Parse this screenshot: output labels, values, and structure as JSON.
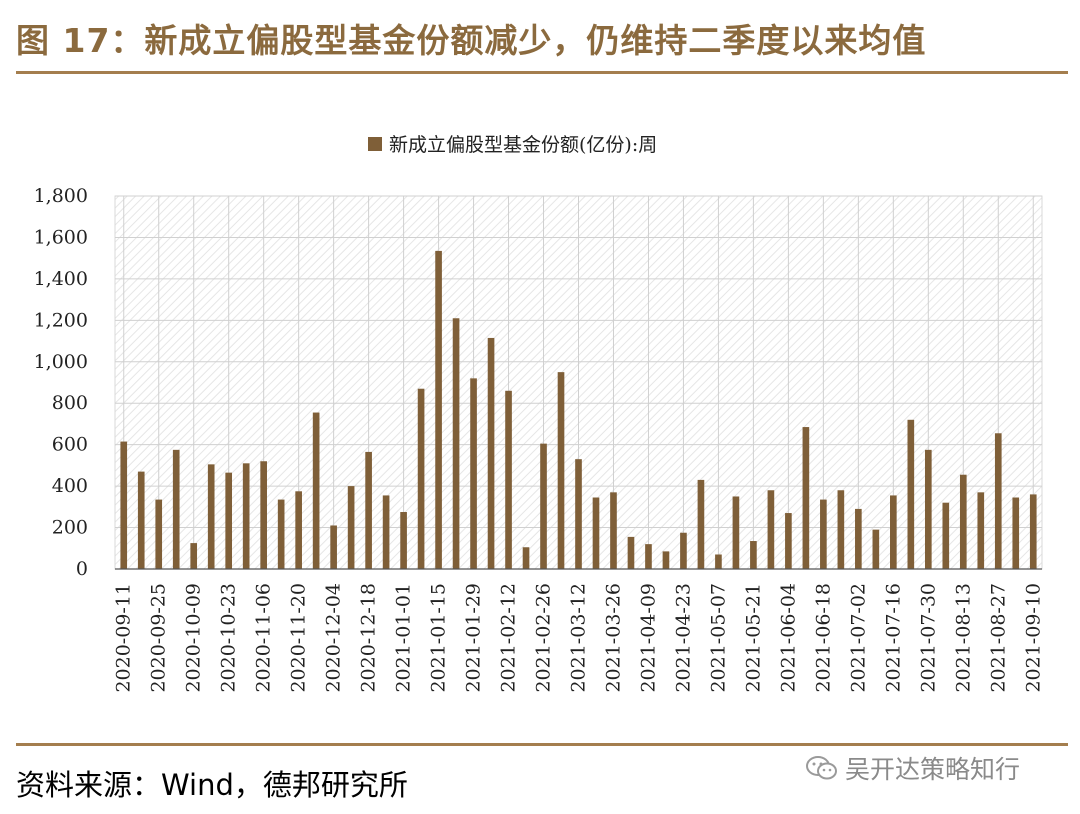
{
  "header": {
    "title": "图 17：新成立偏股型基金份额减少，仍维持二季度以来均值"
  },
  "footer": {
    "source": "资料来源：Wind，德邦研究所",
    "watermark": "吴开达策略知行"
  },
  "colors": {
    "bar": "#7f5f38",
    "rule": "#a47e4e",
    "title": "#8b6a3e"
  },
  "chart_data": {
    "type": "bar",
    "title": "",
    "legend_position": "top",
    "ylim": [
      0,
      1800
    ],
    "ytick_step": 200,
    "grid": true,
    "series": [
      {
        "name": "新成立偏股型基金份额(亿份):周",
        "x": [
          "2020-09-11",
          "2020-09-18",
          "2020-09-25",
          "2020-10-02",
          "2020-10-09",
          "2020-10-16",
          "2020-10-23",
          "2020-10-30",
          "2020-11-06",
          "2020-11-13",
          "2020-11-20",
          "2020-11-27",
          "2020-12-04",
          "2020-12-11",
          "2020-12-18",
          "2020-12-25",
          "2021-01-01",
          "2021-01-08",
          "2021-01-15",
          "2021-01-22",
          "2021-01-29",
          "2021-02-05",
          "2021-02-12",
          "2021-02-19",
          "2021-02-26",
          "2021-03-05",
          "2021-03-12",
          "2021-03-19",
          "2021-03-26",
          "2021-04-02",
          "2021-04-09",
          "2021-04-16",
          "2021-04-23",
          "2021-04-30",
          "2021-05-07",
          "2021-05-14",
          "2021-05-21",
          "2021-05-28",
          "2021-06-04",
          "2021-06-11",
          "2021-06-18",
          "2021-06-25",
          "2021-07-02",
          "2021-07-09",
          "2021-07-16",
          "2021-07-23",
          "2021-07-30",
          "2021-08-06",
          "2021-08-13",
          "2021-08-20",
          "2021-08-27",
          "2021-09-03",
          "2021-09-10"
        ],
        "values": [
          615,
          470,
          335,
          575,
          125,
          505,
          465,
          510,
          520,
          335,
          375,
          755,
          210,
          400,
          565,
          355,
          275,
          870,
          1535,
          1210,
          920,
          1115,
          860,
          105,
          605,
          950,
          530,
          345,
          370,
          155,
          120,
          85,
          175,
          430,
          70,
          350,
          135,
          380,
          270,
          685,
          335,
          380,
          290,
          190,
          355,
          720,
          575,
          320,
          455,
          370,
          655,
          345,
          360
        ]
      }
    ],
    "xtick_labels": [
      "2020-09-11",
      "2020-09-25",
      "2020-10-09",
      "2020-10-23",
      "2020-11-06",
      "2020-11-20",
      "2020-12-04",
      "2020-12-18",
      "2021-01-01",
      "2021-01-15",
      "2021-01-29",
      "2021-02-12",
      "2021-02-26",
      "2021-03-12",
      "2021-03-26",
      "2021-04-09",
      "2021-04-23",
      "2021-05-07",
      "2021-05-21",
      "2021-06-04",
      "2021-06-18",
      "2021-07-02",
      "2021-07-16",
      "2021-07-30",
      "2021-08-13",
      "2021-08-27",
      "2021-09-10"
    ],
    "ytick_labels": [
      "0",
      "200",
      "400",
      "600",
      "800",
      "1,000",
      "1,200",
      "1,400",
      "1,600",
      "1,800"
    ]
  }
}
